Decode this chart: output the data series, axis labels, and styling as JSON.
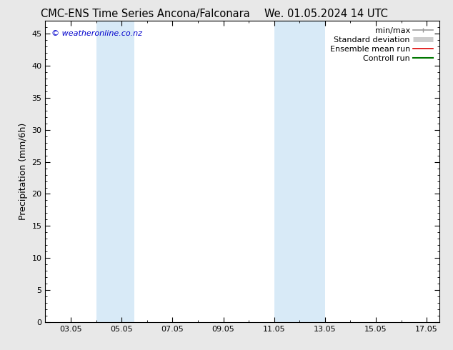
{
  "title_left": "CMC-ENS Time Series Ancona/Falconara",
  "title_right": "We. 01.05.2024 14 UTC",
  "ylabel": "Precipitation (mm/6h)",
  "ylim": [
    0,
    47
  ],
  "yticks": [
    0,
    5,
    10,
    15,
    20,
    25,
    30,
    35,
    40,
    45
  ],
  "xtick_labels": [
    "03.05",
    "05.05",
    "07.05",
    "09.05",
    "11.05",
    "13.05",
    "15.05",
    "17.05"
  ],
  "xtick_positions": [
    3,
    5,
    7,
    9,
    11,
    13,
    15,
    17
  ],
  "xlim": [
    2.0,
    17.5
  ],
  "shaded_bands": [
    {
      "xmin": 4.0,
      "xmax": 5.5,
      "color": "#d8eaf7"
    },
    {
      "xmin": 11.0,
      "xmax": 13.0,
      "color": "#d8eaf7"
    }
  ],
  "legend_entries": [
    {
      "label": "min/max",
      "color": "#999999",
      "lw": 1.2
    },
    {
      "label": "Standard deviation",
      "color": "#cccccc",
      "lw": 5
    },
    {
      "label": "Ensemble mean run",
      "color": "#dd0000",
      "lw": 1.2
    },
    {
      "label": "Controll run",
      "color": "#007700",
      "lw": 1.5
    }
  ],
  "copyright_text": "© weatheronline.co.nz",
  "copyright_color": "#0000cc",
  "fig_bg_color": "#e8e8e8",
  "plot_bg_color": "#ffffff",
  "title_fontsize": 10.5,
  "axis_label_fontsize": 9,
  "tick_fontsize": 8,
  "legend_fontsize": 8
}
